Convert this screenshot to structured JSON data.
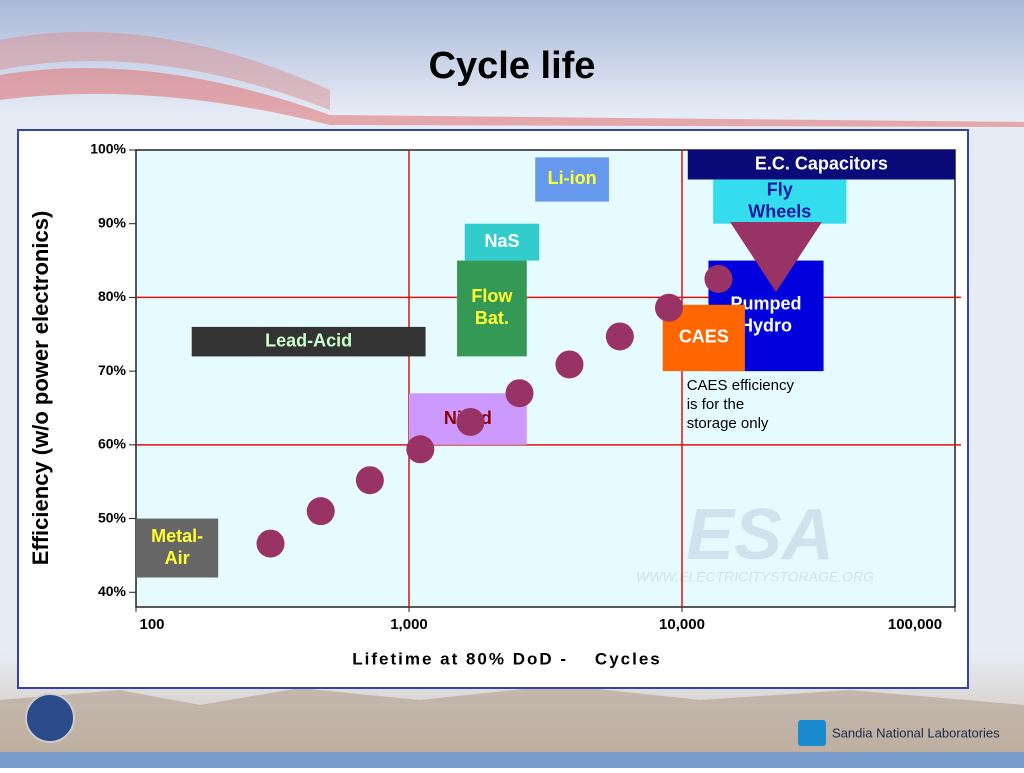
{
  "slide": {
    "title": "Cycle life",
    "footer": "Sandia National Laboratories"
  },
  "chart_data": {
    "type": "scatter",
    "ylabel": "Efficiency (w/o power electronics)",
    "xlabel": "Lifetime at 80% DoD -    Cycles",
    "xlog": true,
    "xlim": [
      100,
      100000
    ],
    "xticks": [
      100,
      {
        "value": 1000,
        "label": "1,000"
      },
      {
        "value": 10000,
        "label": "10,000"
      },
      {
        "value": 100000,
        "label": "100,000"
      }
    ],
    "ylim": [
      38,
      100
    ],
    "yticks": [
      {
        "value": 40,
        "label": "40%"
      },
      {
        "value": 50,
        "label": "50%"
      },
      {
        "value": 60,
        "label": "60%"
      },
      {
        "value": 70,
        "label": "70%"
      },
      {
        "value": 80,
        "label": "80%"
      },
      {
        "value": 90,
        "label": "90%"
      },
      {
        "value": 100,
        "label": "100%"
      }
    ],
    "grid_lines": {
      "x": [
        1000,
        10000
      ],
      "y": [
        60,
        80
      ],
      "color": "#dd1111"
    },
    "regions": [
      {
        "label": [
          "E.C. Capacitors"
        ],
        "color": "#0a0a78",
        "text_color": "#ffffff",
        "x": [
          10500,
          100000
        ],
        "y": [
          96,
          100
        ]
      },
      {
        "label": [
          "Fly",
          "Wheels"
        ],
        "color": "#33ddee",
        "text_color": "#1a1aa0",
        "x": [
          13000,
          40000
        ],
        "y": [
          90,
          96
        ]
      },
      {
        "label": [
          "Li-ion"
        ],
        "color": "#6699ee",
        "text_color": "#ffff33",
        "x": [
          2900,
          5400
        ],
        "y": [
          93,
          99
        ]
      },
      {
        "label": [
          "NaS"
        ],
        "color": "#33cccc",
        "text_color": "#ffffff",
        "x": [
          1600,
          3000
        ],
        "y": [
          85,
          90
        ]
      },
      {
        "label": [
          "Flow",
          "Bat."
        ],
        "color": "#339955",
        "text_color": "#ffff33",
        "x": [
          1500,
          2700
        ],
        "y": [
          72,
          85
        ]
      },
      {
        "label": [
          "Lead-Acid"
        ],
        "color": "#333333",
        "text_color": "#ccffcc",
        "x": [
          160,
          1150
        ],
        "y": [
          72,
          76
        ]
      },
      {
        "label": [
          "Ni-Cd"
        ],
        "color": "#cc99ff",
        "text_color": "#880000",
        "x": [
          1000,
          2700
        ],
        "y": [
          60,
          67
        ]
      },
      {
        "label": [
          "Metal-",
          "Air"
        ],
        "color": "#666666",
        "text_color": "#ffff33",
        "x": [
          100,
          200
        ],
        "y": [
          42,
          50
        ]
      },
      {
        "label": [
          "Pumped",
          "Hydro"
        ],
        "color": "#0000dd",
        "text_color": "#ffffff",
        "x": [
          12500,
          33000
        ],
        "y": [
          70,
          85
        ]
      },
      {
        "label": [
          "CAES"
        ],
        "color": "#ff6600",
        "text_color": "#ffffff",
        "x": [
          8500,
          17000
        ],
        "y": [
          70,
          79
        ]
      }
    ],
    "points": {
      "color": "#993366",
      "x": [
        311,
        475,
        719,
        1100,
        1680,
        2540,
        3870,
        5920,
        8960,
        13600
      ],
      "y": [
        46.6,
        51,
        55.2,
        59.4,
        63.1,
        67,
        70.9,
        74.7,
        78.6,
        82.5
      ]
    },
    "annotation": [
      "CAES efficiency",
      "is for the",
      "storage only"
    ],
    "watermark": {
      "logo": "ESA",
      "url": "WWW.ELECTRICITYSTORAGE.ORG"
    }
  }
}
